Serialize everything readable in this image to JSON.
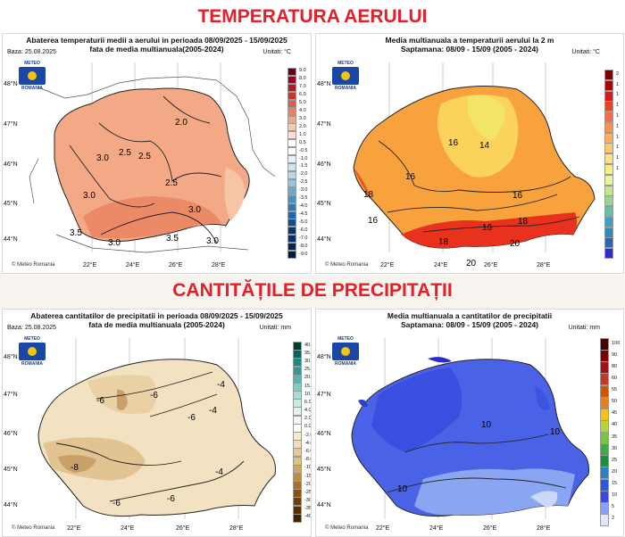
{
  "section_titles": {
    "temperature": "TEMPERATURA AERULUI",
    "precipitation": "CANTITĂȚILE DE PRECIPITAȚII"
  },
  "colors": {
    "title_red": "#e3202a"
  },
  "lat_labels": [
    "48°N",
    "47°N",
    "46°N",
    "45°N",
    "44°N"
  ],
  "lon_labels": [
    "22°E",
    "24°E",
    "26°E",
    "28°E"
  ],
  "logo": {
    "top": "METEO",
    "bottom": "ROMANIA"
  },
  "panels": {
    "temp_anomaly": {
      "title_line1": "Abaterea temperaturii medii a aerului in perioada 08/09/2025 - 15/09/2025",
      "title_line2": "fata de media multianuala(2005-2024)",
      "baza": "Baza: 25.08.2025",
      "units": "Unitati: °C",
      "credit": "© Meteo Romania",
      "legend": [
        "9.0",
        "8.0",
        "7.0",
        "6.0",
        "5.0",
        "4.0",
        "3.0",
        "2.0",
        "1.0",
        "0.5",
        "-0.5",
        "-1.0",
        "-1.5",
        "-2.0",
        "-2.5",
        "-3.0",
        "-3.5",
        "-4.0",
        "-4.5",
        "-5.0",
        "-6.0",
        "-7.0",
        "-8.0",
        "-9.0"
      ],
      "legend_colors": [
        "#67001f",
        "#8c0826",
        "#b2182b",
        "#c7362d",
        "#d6604d",
        "#e58268",
        "#f4a582",
        "#f9c9ad",
        "#fde0cf",
        "#ffffff",
        "#ffffff",
        "#e8f1f8",
        "#d1e5f0",
        "#b7d6ea",
        "#92c5de",
        "#6fa9d0",
        "#4393c3",
        "#3379b5",
        "#2166ac",
        "#164b8a",
        "#0b3568",
        "#08306b",
        "#062450",
        "#041a3a"
      ],
      "contour_labels": [
        "2.0",
        "2.5",
        "3.0",
        "2.5",
        "3.0",
        "2.5",
        "3.0",
        "3.0",
        "3.5",
        "3.5",
        "3.0"
      ]
    },
    "temp_normal": {
      "title_line1": "Media multianuala a temperaturii aerului la 2 m",
      "title_line2": "Saptamana: 08/09 - 15/09 (2005 - 2024)",
      "units": "Unitati: °C",
      "credit": "© Meteo Romania",
      "legend": [
        "2",
        "1",
        "1",
        "1",
        "1",
        "1",
        "1",
        "1",
        "1",
        "1",
        "",
        "",
        "",
        "",
        "",
        "",
        "",
        ""
      ],
      "legend_colors": [
        "#7f0000",
        "#b00000",
        "#d7191c",
        "#e8441e",
        "#f46d43",
        "#f99247",
        "#fdae61",
        "#fec771",
        "#fee08b",
        "#f5f07a",
        "#e6f598",
        "#c3e78c",
        "#99d594",
        "#66c2a5",
        "#3f9fc5",
        "#3288bd",
        "#2b66b5",
        "#2b2bd0"
      ],
      "contour_labels": [
        "16",
        "14",
        "16",
        "16",
        "18",
        "16",
        "16",
        "18",
        "18",
        "20",
        "20"
      ]
    },
    "precip_anomaly": {
      "title_line1": "Abaterea cantitatilor de precipitatii in perioada 08/09/2025 - 15/09/2025",
      "title_line2": "fata de media multianuala (2005-2024)",
      "baza": "Baza: 25.08.2025",
      "units": "Unitati: mm",
      "credit": "© Meteo Romania",
      "legend": [
        "40.0",
        "35.0",
        "30.0",
        "25.0",
        "20.0",
        "15.0",
        "10.0",
        "6.0",
        "4.0",
        "2.0",
        "0.0",
        "-2.0",
        "-4.0",
        "-6.0",
        "-8.0",
        "-10.0",
        "-15.0",
        "-20.0",
        "-25.0",
        "-30.0",
        "-35.0",
        "-40.0"
      ],
      "legend_colors": [
        "#003c30",
        "#01665e",
        "#1b8a7e",
        "#35978f",
        "#5ab4ac",
        "#80cdc1",
        "#a8ddd3",
        "#c7eae5",
        "#e0f3ef",
        "#f5f5f5",
        "#ffffff",
        "#f6ead2",
        "#f0dcb8",
        "#e6c894",
        "#dfc27d",
        "#cfa760",
        "#bf8a3d",
        "#a8712a",
        "#8c510a",
        "#6f3f08",
        "#543005",
        "#3f2303"
      ],
      "contour_labels": [
        "-4",
        "-6",
        "-4",
        "-6",
        "-6",
        "-8",
        "-6",
        "-4",
        "-6"
      ]
    },
    "precip_normal": {
      "title_line1": "Media multianuala a cantitatilor de precipitatii",
      "title_line2": "Saptamana: 08/09 - 15/09 (2005 - 2024)",
      "units": "Unitati: mm",
      "credit": "© Meteo Romania",
      "legend": [
        "100",
        "90",
        "80",
        "60",
        "55",
        "50",
        "45",
        "40",
        "35",
        "30",
        "25",
        "20",
        "15",
        "10",
        "5",
        "2"
      ],
      "legend_colors": [
        "#4d0000",
        "#7f0000",
        "#a50f15",
        "#c0392b",
        "#d35400",
        "#e67e22",
        "#f1c40f",
        "#b7d334",
        "#7cc242",
        "#41a845",
        "#1e8c3c",
        "#2e7fc4",
        "#2958d9",
        "#3b47e6",
        "#8ea0f5",
        "#dde6fb"
      ],
      "contour_labels": [
        "10",
        "10",
        "10"
      ]
    }
  }
}
